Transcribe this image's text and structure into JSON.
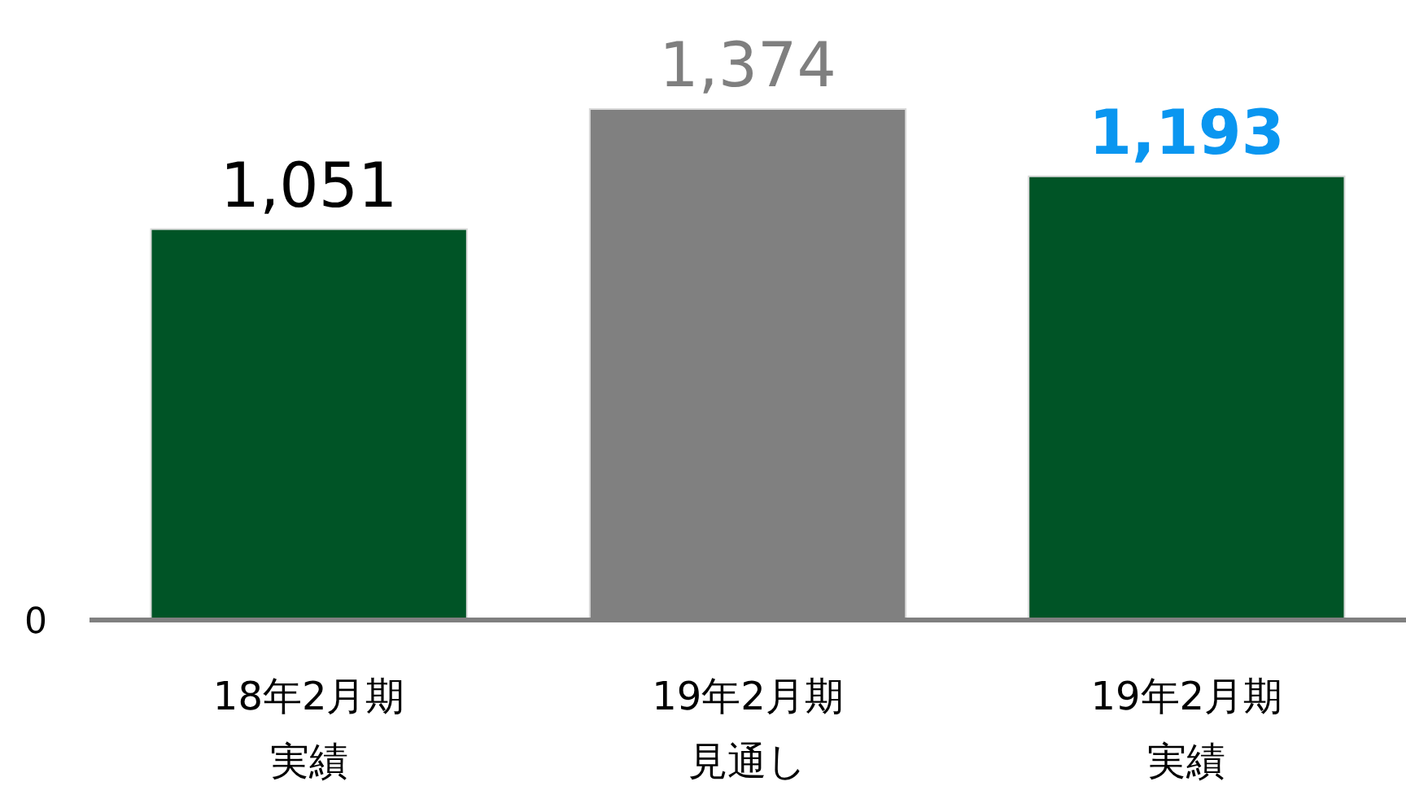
{
  "chart_data": {
    "type": "bar",
    "categories": [
      "18年2月期実績",
      "19年2月期見通し",
      "19年2月期実績"
    ],
    "values": [
      1051,
      1374,
      1193
    ],
    "value_labels": [
      "1,051",
      "1,374",
      "1,193"
    ],
    "colors": [
      "#005426",
      "#808080",
      "#005426"
    ],
    "annotations": [
      "0"
    ]
  }
}
